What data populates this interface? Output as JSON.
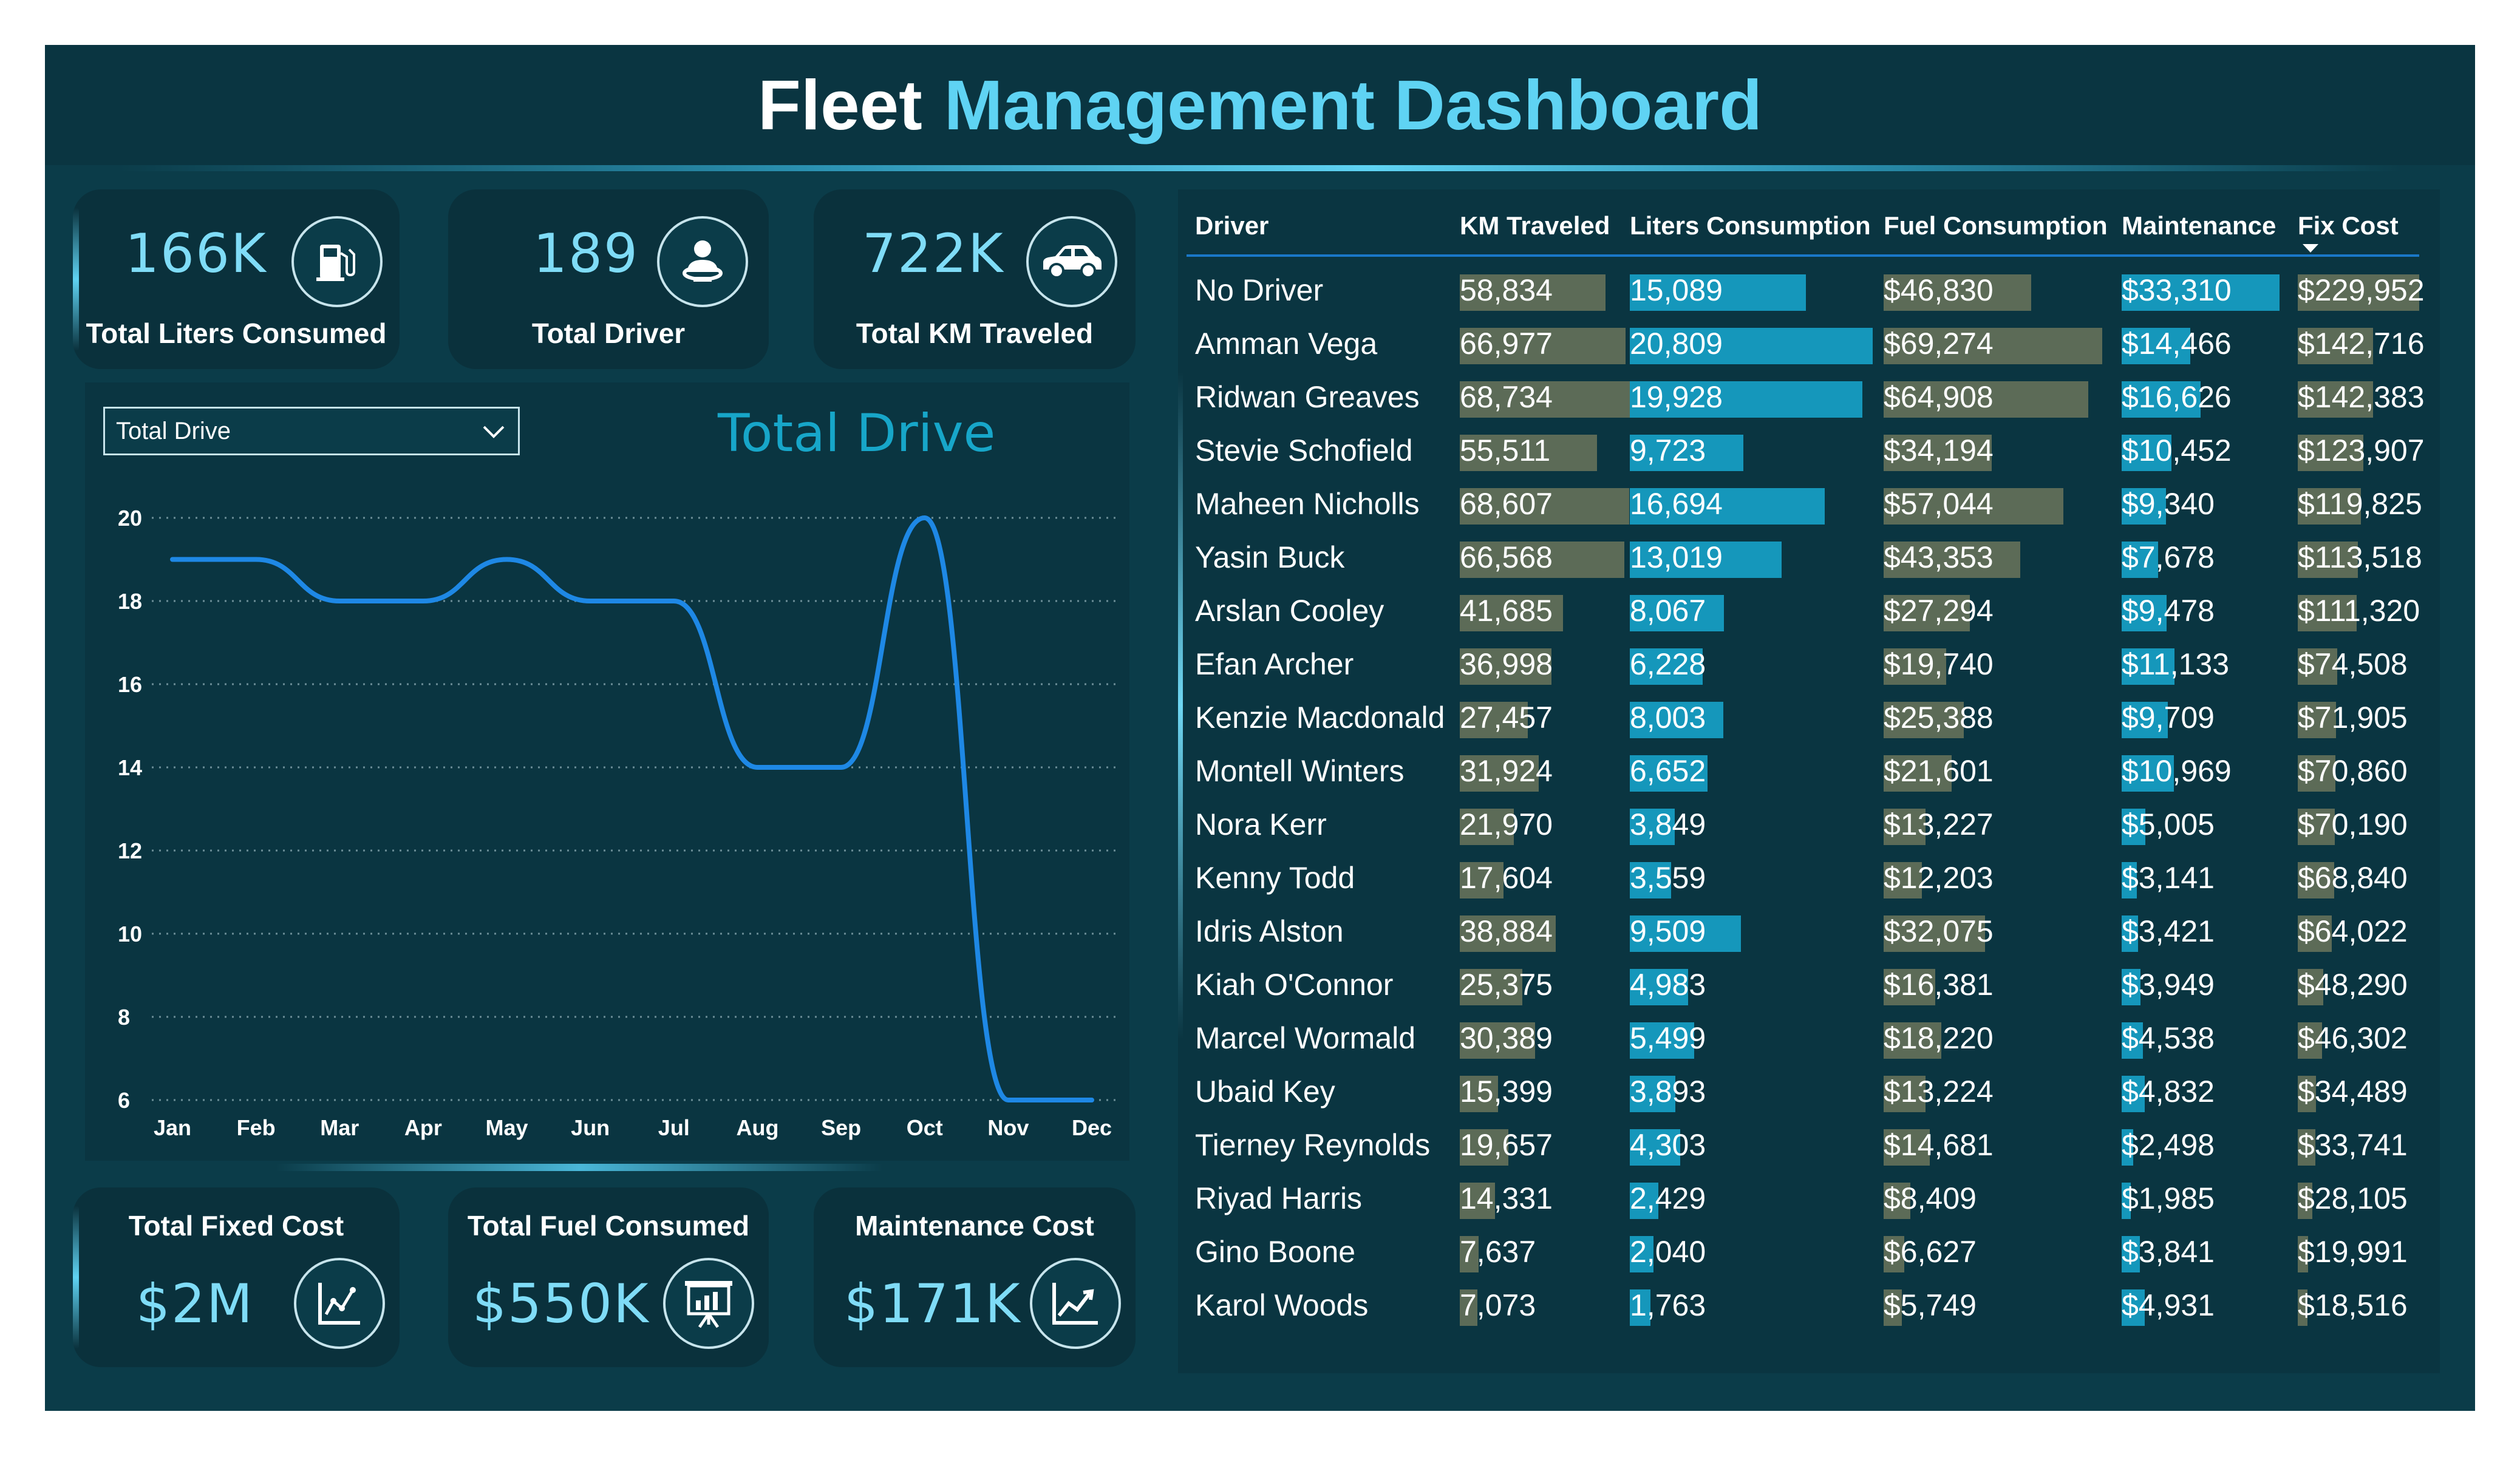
{
  "header": {
    "title_part1": "Fleet",
    "title_part2": "Management Dashboard"
  },
  "kpis_top": [
    {
      "value": "166K",
      "label": "Total Liters Consumed",
      "icon": "fuel-pump-icon"
    },
    {
      "value": "189",
      "label": "Total Driver",
      "icon": "driver-icon"
    },
    {
      "value": "722K",
      "label": "Total KM Traveled",
      "icon": "car-icon"
    }
  ],
  "kpis_bottom": [
    {
      "value": "$2M",
      "label": "Total Fixed Cost",
      "icon": "chart-icon"
    },
    {
      "value": "$550K",
      "label": "Total Fuel Consumed",
      "icon": "presentation-icon"
    },
    {
      "value": "$171K",
      "label": "Maintenance Cost",
      "icon": "trend-icon"
    }
  ],
  "dropdown": {
    "selected": "Total Drive"
  },
  "chart_data": {
    "type": "line",
    "title": "Total Drive",
    "categories": [
      "Jan",
      "Feb",
      "Mar",
      "Apr",
      "May",
      "Jun",
      "Jul",
      "Aug",
      "Sep",
      "Oct",
      "Nov",
      "Dec"
    ],
    "values": [
      19,
      19,
      18,
      18,
      19,
      18,
      18,
      14,
      14,
      20,
      6,
      6
    ],
    "y_ticks": [
      "6",
      "8",
      "10",
      "12",
      "14",
      "16",
      "18",
      "20"
    ],
    "ylim": [
      6,
      20
    ],
    "grid": true,
    "color": "#1e88e5"
  },
  "table": {
    "columns": [
      "Driver",
      "KM Traveled",
      "Liters Consumption",
      "Fuel Consumption",
      "Maintenance",
      "Fix Cost"
    ],
    "colors": {
      "km": "#5c6b57",
      "liters": "#1597bb",
      "fuel": "#5c6b57",
      "maintenance": "#1597bb",
      "fixcost": "#5c6b57"
    },
    "max": {
      "km": 68734,
      "liters": 20809,
      "fuel": 69274,
      "maintenance": 33310,
      "fixcost": 229952
    },
    "rows": [
      {
        "driver": "No Driver",
        "km": "58,834",
        "km_v": 58834,
        "liters": "15,089",
        "liters_v": 15089,
        "fuel": "$46,830",
        "fuel_v": 46830,
        "maintenance": "$33,310",
        "maintenance_v": 33310,
        "fixcost": "$229,952",
        "fixcost_v": 229952
      },
      {
        "driver": "Amman Vega",
        "km": "66,977",
        "km_v": 66977,
        "liters": "20,809",
        "liters_v": 20809,
        "fuel": "$69,274",
        "fuel_v": 69274,
        "maintenance": "$14,466",
        "maintenance_v": 14466,
        "fixcost": "$142,716",
        "fixcost_v": 142716
      },
      {
        "driver": "Ridwan Greaves",
        "km": "68,734",
        "km_v": 68734,
        "liters": "19,928",
        "liters_v": 19928,
        "fuel": "$64,908",
        "fuel_v": 64908,
        "maintenance": "$16,626",
        "maintenance_v": 16626,
        "fixcost": "$142,383",
        "fixcost_v": 142383
      },
      {
        "driver": "Stevie Schofield",
        "km": "55,511",
        "km_v": 55511,
        "liters": "9,723",
        "liters_v": 9723,
        "fuel": "$34,194",
        "fuel_v": 34194,
        "maintenance": "$10,452",
        "maintenance_v": 10452,
        "fixcost": "$123,907",
        "fixcost_v": 123907
      },
      {
        "driver": "Maheen Nicholls",
        "km": "68,607",
        "km_v": 68607,
        "liters": "16,694",
        "liters_v": 16694,
        "fuel": "$57,044",
        "fuel_v": 57044,
        "maintenance": "$9,340",
        "maintenance_v": 9340,
        "fixcost": "$119,825",
        "fixcost_v": 119825
      },
      {
        "driver": "Yasin Buck",
        "km": "66,568",
        "km_v": 66568,
        "liters": "13,019",
        "liters_v": 13019,
        "fuel": "$43,353",
        "fuel_v": 43353,
        "maintenance": "$7,678",
        "maintenance_v": 7678,
        "fixcost": "$113,518",
        "fixcost_v": 113518
      },
      {
        "driver": "Arslan Cooley",
        "km": "41,685",
        "km_v": 41685,
        "liters": "8,067",
        "liters_v": 8067,
        "fuel": "$27,294",
        "fuel_v": 27294,
        "maintenance": "$9,478",
        "maintenance_v": 9478,
        "fixcost": "$111,320",
        "fixcost_v": 111320
      },
      {
        "driver": "Efan Archer",
        "km": "36,998",
        "km_v": 36998,
        "liters": "6,228",
        "liters_v": 6228,
        "fuel": "$19,740",
        "fuel_v": 19740,
        "maintenance": "$11,133",
        "maintenance_v": 11133,
        "fixcost": "$74,508",
        "fixcost_v": 74508
      },
      {
        "driver": "Kenzie Macdonald",
        "km": "27,457",
        "km_v": 27457,
        "liters": "8,003",
        "liters_v": 8003,
        "fuel": "$25,388",
        "fuel_v": 25388,
        "maintenance": "$9,709",
        "maintenance_v": 9709,
        "fixcost": "$71,905",
        "fixcost_v": 71905
      },
      {
        "driver": "Montell Winters",
        "km": "31,924",
        "km_v": 31924,
        "liters": "6,652",
        "liters_v": 6652,
        "fuel": "$21,601",
        "fuel_v": 21601,
        "maintenance": "$10,969",
        "maintenance_v": 10969,
        "fixcost": "$70,860",
        "fixcost_v": 70860
      },
      {
        "driver": "Nora Kerr",
        "km": "21,970",
        "km_v": 21970,
        "liters": "3,849",
        "liters_v": 3849,
        "fuel": "$13,227",
        "fuel_v": 13227,
        "maintenance": "$5,005",
        "maintenance_v": 5005,
        "fixcost": "$70,190",
        "fixcost_v": 70190
      },
      {
        "driver": "Kenny Todd",
        "km": "17,604",
        "km_v": 17604,
        "liters": "3,559",
        "liters_v": 3559,
        "fuel": "$12,203",
        "fuel_v": 12203,
        "maintenance": "$3,141",
        "maintenance_v": 3141,
        "fixcost": "$68,840",
        "fixcost_v": 68840
      },
      {
        "driver": "Idris Alston",
        "km": "38,884",
        "km_v": 38884,
        "liters": "9,509",
        "liters_v": 9509,
        "fuel": "$32,075",
        "fuel_v": 32075,
        "maintenance": "$3,421",
        "maintenance_v": 3421,
        "fixcost": "$64,022",
        "fixcost_v": 64022
      },
      {
        "driver": "Kiah O'Connor",
        "km": "25,375",
        "km_v": 25375,
        "liters": "4,983",
        "liters_v": 4983,
        "fuel": "$16,381",
        "fuel_v": 16381,
        "maintenance": "$3,949",
        "maintenance_v": 3949,
        "fixcost": "$48,290",
        "fixcost_v": 48290
      },
      {
        "driver": "Marcel Wormald",
        "km": "30,389",
        "km_v": 30389,
        "liters": "5,499",
        "liters_v": 5499,
        "fuel": "$18,220",
        "fuel_v": 18220,
        "maintenance": "$4,538",
        "maintenance_v": 4538,
        "fixcost": "$46,302",
        "fixcost_v": 46302
      },
      {
        "driver": "Ubaid Key",
        "km": "15,399",
        "km_v": 15399,
        "liters": "3,893",
        "liters_v": 3893,
        "fuel": "$13,224",
        "fuel_v": 13224,
        "maintenance": "$4,832",
        "maintenance_v": 4832,
        "fixcost": "$34,489",
        "fixcost_v": 34489
      },
      {
        "driver": "Tierney Reynolds",
        "km": "19,657",
        "km_v": 19657,
        "liters": "4,303",
        "liters_v": 4303,
        "fuel": "$14,681",
        "fuel_v": 14681,
        "maintenance": "$2,498",
        "maintenance_v": 2498,
        "fixcost": "$33,741",
        "fixcost_v": 33741
      },
      {
        "driver": "Riyad Harris",
        "km": "14,331",
        "km_v": 14331,
        "liters": "2,429",
        "liters_v": 2429,
        "fuel": "$8,409",
        "fuel_v": 8409,
        "maintenance": "$1,985",
        "maintenance_v": 1985,
        "fixcost": "$28,105",
        "fixcost_v": 28105
      },
      {
        "driver": "Gino Boone",
        "km": "7,637",
        "km_v": 7637,
        "liters": "2,040",
        "liters_v": 2040,
        "fuel": "$6,627",
        "fuel_v": 6627,
        "maintenance": "$3,841",
        "maintenance_v": 3841,
        "fixcost": "$19,991",
        "fixcost_v": 19991
      },
      {
        "driver": "Karol Woods",
        "km": "7,073",
        "km_v": 7073,
        "liters": "1,763",
        "liters_v": 1763,
        "fuel": "$5,749",
        "fuel_v": 5749,
        "maintenance": "$4,931",
        "maintenance_v": 4931,
        "fixcost": "$18,516",
        "fixcost_v": 18516
      }
    ]
  }
}
